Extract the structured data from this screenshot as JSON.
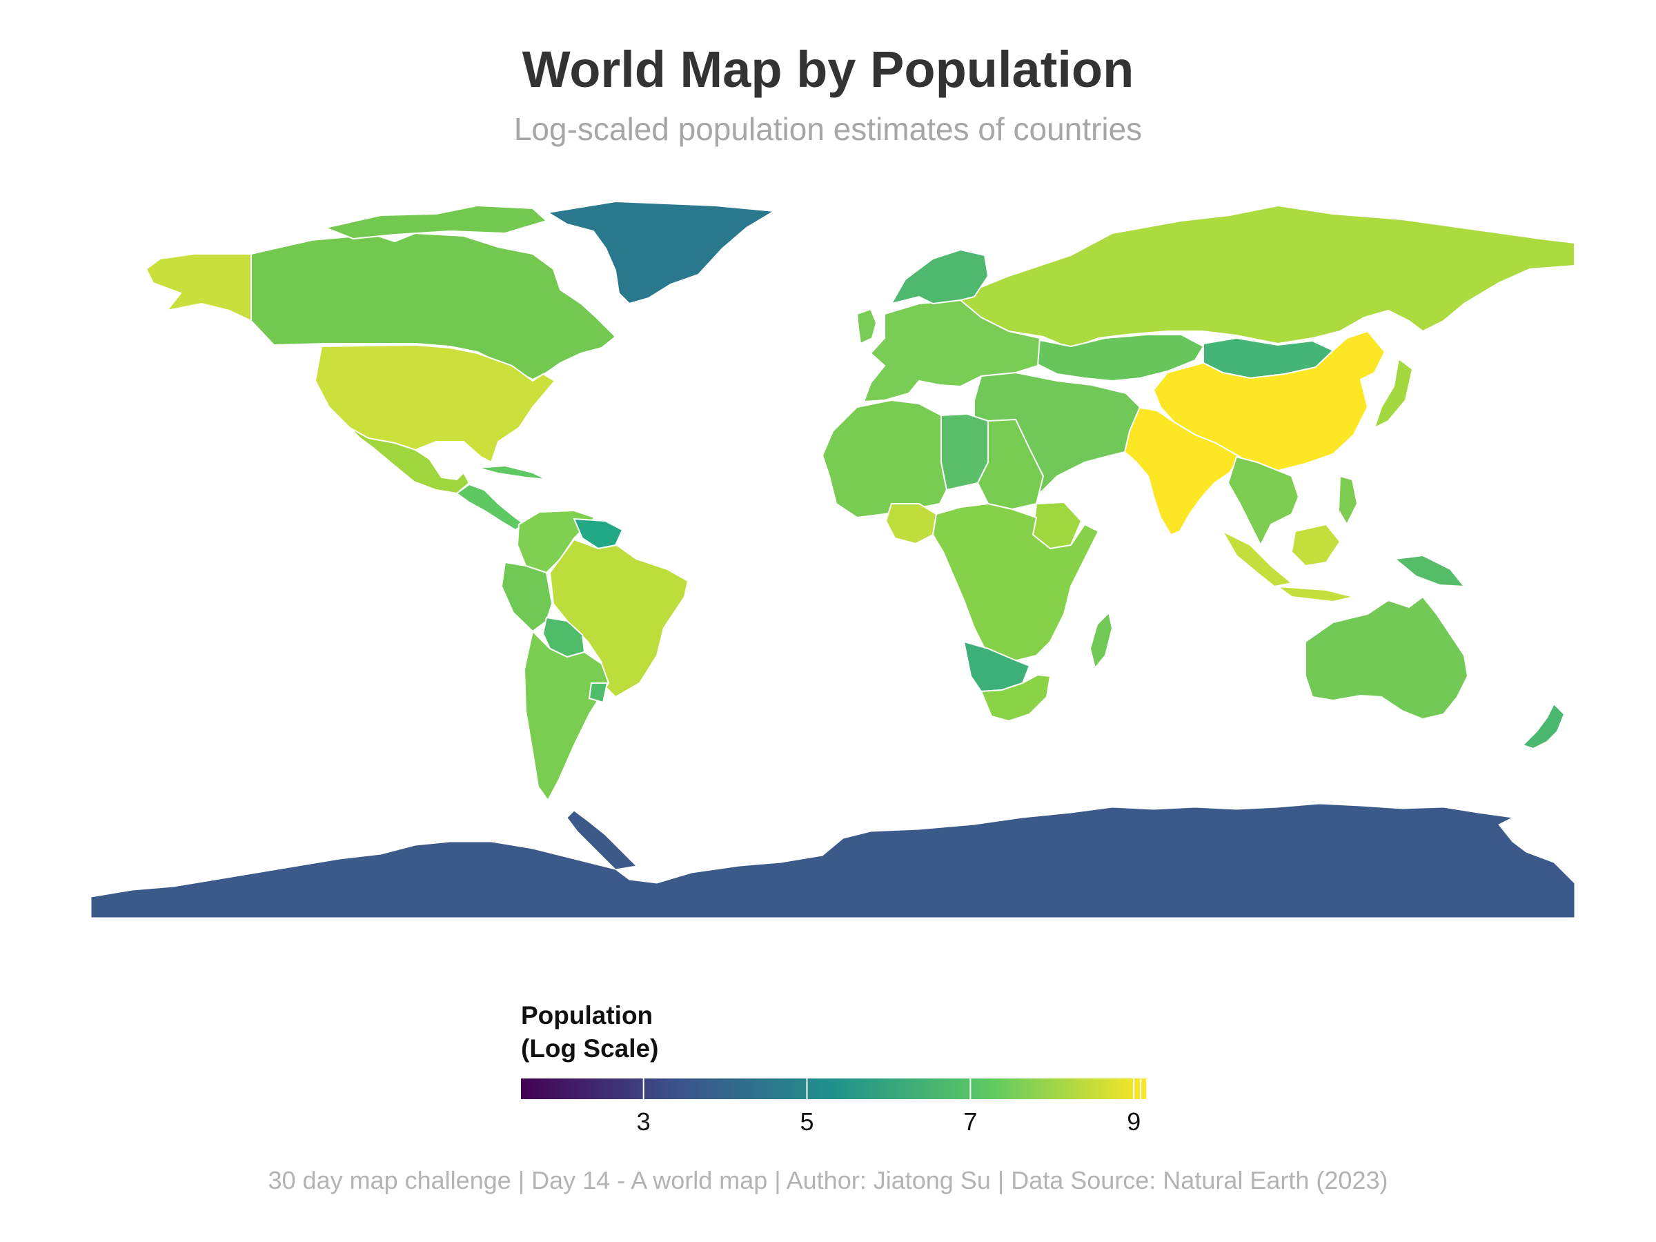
{
  "header": {
    "title": "World Map by Population",
    "subtitle": "Log-scaled population estimates of countries"
  },
  "legend": {
    "title_line1": "Population",
    "title_line2": "(Log Scale)",
    "ticks": [
      {
        "value": 3,
        "label": "3"
      },
      {
        "value": 5,
        "label": "5"
      },
      {
        "value": 7,
        "label": "7"
      },
      {
        "value": 9,
        "label": "9"
      }
    ],
    "range": [
      1.5,
      9.15
    ],
    "palette": [
      "#440154",
      "#3b528b",
      "#21918c",
      "#5ec962",
      "#fde725"
    ]
  },
  "caption": "30 day map challenge | Day 14 - A world map | Author: Jiatong Su | Data Source: Natural Earth (2023)",
  "regions": [
    {
      "name": "Greenland",
      "log_pop": 4.75,
      "color": "#2a788e"
    },
    {
      "name": "Canada",
      "log_pop": 7.6,
      "color": "#73c94f"
    },
    {
      "name": "Alaska (USA)",
      "log_pop": 8.5,
      "color": "#c9df3b"
    },
    {
      "name": "United States",
      "log_pop": 8.5,
      "color": "#cbe03b"
    },
    {
      "name": "Mexico",
      "log_pop": 8.1,
      "color": "#9fd63d"
    },
    {
      "name": "Central America",
      "log_pop": 7.0,
      "color": "#5ec962"
    },
    {
      "name": "Brazil",
      "log_pop": 8.3,
      "color": "#bddd3c"
    },
    {
      "name": "Colombia",
      "log_pop": 7.7,
      "color": "#7fcf50"
    },
    {
      "name": "Peru",
      "log_pop": 7.5,
      "color": "#70c955"
    },
    {
      "name": "Bolivia",
      "log_pop": 7.0,
      "color": "#4fbc6a"
    },
    {
      "name": "Argentina",
      "log_pop": 7.65,
      "color": "#7bcd52"
    },
    {
      "name": "Guyana / Suriname",
      "log_pop": 5.9,
      "color": "#22a884"
    },
    {
      "name": "Russia",
      "log_pop": 8.15,
      "color": "#abdb3f"
    },
    {
      "name": "China",
      "log_pop": 9.15,
      "color": "#fde725"
    },
    {
      "name": "India",
      "log_pop": 9.1,
      "color": "#fde725"
    },
    {
      "name": "Mongolia",
      "log_pop": 6.5,
      "color": "#44b576"
    },
    {
      "name": "Kazakhstan",
      "log_pop": 7.3,
      "color": "#66c65c"
    },
    {
      "name": "Europe",
      "log_pop": 7.6,
      "color": "#79cc54"
    },
    {
      "name": "Nordic",
      "log_pop": 6.8,
      "color": "#4db86e"
    },
    {
      "name": "Middle East",
      "log_pop": 7.5,
      "color": "#6fc857"
    },
    {
      "name": "North Africa",
      "log_pop": 7.6,
      "color": "#79cc52"
    },
    {
      "name": "Libya",
      "log_pop": 6.8,
      "color": "#5abf68"
    },
    {
      "name": "Nigeria",
      "log_pop": 8.3,
      "color": "#bfdd3c"
    },
    {
      "name": "Ethiopia",
      "log_pop": 8.05,
      "color": "#9ed73e"
    },
    {
      "name": "Central & East Africa",
      "log_pop": 7.7,
      "color": "#86d14a"
    },
    {
      "name": "Namibia / Botswana",
      "log_pop": 6.4,
      "color": "#3daf78"
    },
    {
      "name": "South Africa",
      "log_pop": 7.8,
      "color": "#8ad347"
    },
    {
      "name": "Madagascar",
      "log_pop": 7.45,
      "color": "#70c955"
    },
    {
      "name": "Indonesia",
      "log_pop": 8.45,
      "color": "#c4de3b"
    },
    {
      "name": "Southeast Asia",
      "log_pop": 7.6,
      "color": "#7ccd52"
    },
    {
      "name": "Japan",
      "log_pop": 8.1,
      "color": "#a3d83e"
    },
    {
      "name": "Australia",
      "log_pop": 7.4,
      "color": "#72c955"
    },
    {
      "name": "New Zealand",
      "log_pop": 6.7,
      "color": "#4ab86f"
    },
    {
      "name": "Papua New Guinea",
      "log_pop": 7.0,
      "color": "#55bc67"
    },
    {
      "name": "Antarctica",
      "log_pop": 3.6,
      "color": "#3b5a8a"
    }
  ]
}
